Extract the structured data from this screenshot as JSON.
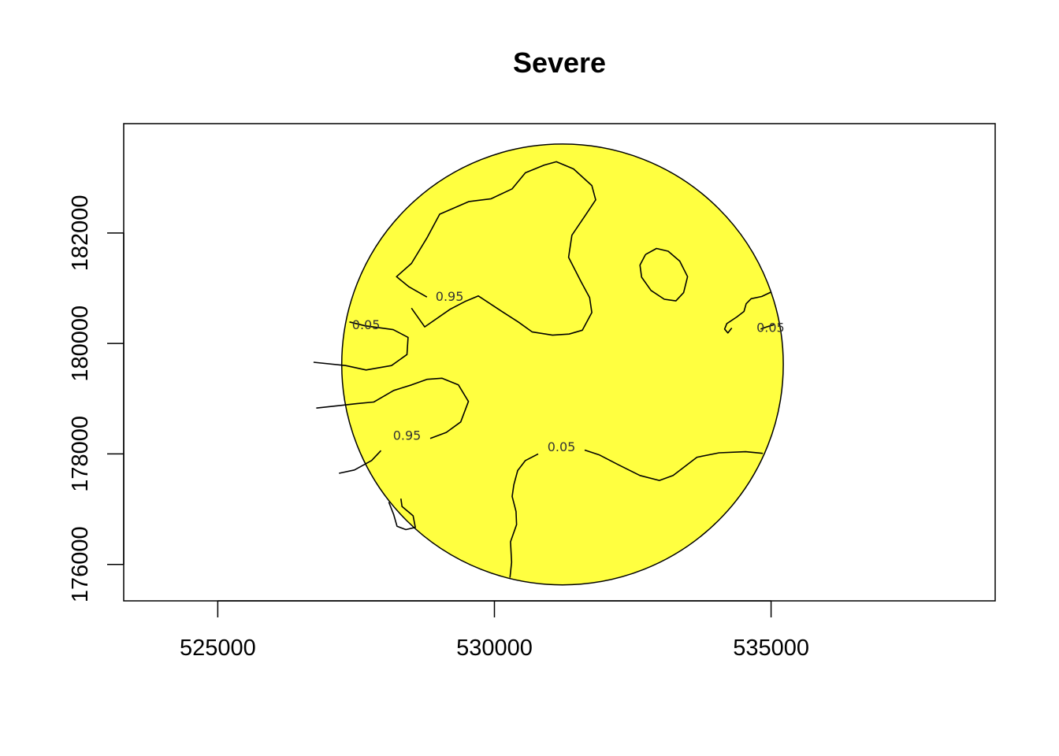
{
  "chart_data": {
    "type": "contour",
    "title": "Severe",
    "xlabel": "",
    "ylabel": "",
    "xlim": [
      523300,
      539050
    ],
    "ylim": [
      175340,
      183980
    ],
    "x_ticks": [
      525000,
      530000,
      535000
    ],
    "y_ticks": [
      176000,
      178000,
      180000,
      182000
    ],
    "x_tick_labels": [
      "525000",
      "530000",
      "535000"
    ],
    "y_tick_labels": [
      "176000",
      "178000",
      "180000",
      "182000"
    ],
    "region": {
      "shape": "circle",
      "center": [
        531230,
        179620
      ],
      "radius": 3990,
      "fill_color": "#ffff40"
    },
    "contour_levels": [
      "0.05",
      "0.95"
    ],
    "contour_labels": [
      {
        "text": "0.95",
        "x": 529190,
        "y": 180840
      },
      {
        "text": "0.05",
        "x": 527680,
        "y": 180330
      },
      {
        "text": "0.05",
        "x": 534990,
        "y": 180280
      },
      {
        "text": "0.95",
        "x": 528420,
        "y": 178330
      },
      {
        "text": "0.05",
        "x": 531210,
        "y": 178120
      }
    ],
    "contours": [
      {
        "level": "0.95",
        "points": [
          [
            528500,
            180640
          ],
          [
            528740,
            180300
          ],
          [
            529200,
            180620
          ],
          [
            529470,
            180760
          ],
          [
            529710,
            180860
          ],
          [
            530120,
            180590
          ],
          [
            530430,
            180390
          ],
          [
            530680,
            180210
          ],
          [
            531050,
            180150
          ],
          [
            531350,
            180170
          ],
          [
            531590,
            180240
          ],
          [
            531760,
            180560
          ],
          [
            531720,
            180830
          ],
          [
            531570,
            181110
          ],
          [
            531340,
            181560
          ],
          [
            531400,
            181960
          ],
          [
            531650,
            182330
          ],
          [
            531830,
            182600
          ],
          [
            531760,
            182860
          ],
          [
            531430,
            183160
          ],
          [
            531120,
            183290
          ],
          [
            530900,
            183230
          ],
          [
            530560,
            183090
          ],
          [
            530320,
            182800
          ],
          [
            529940,
            182620
          ],
          [
            529540,
            182570
          ],
          [
            529010,
            182340
          ],
          [
            528780,
            181910
          ],
          [
            528500,
            181450
          ],
          [
            528230,
            181210
          ],
          [
            528450,
            181030
          ],
          [
            528780,
            180840
          ]
        ]
      },
      {
        "level": "0.05",
        "points": [
          [
            527380,
            180390
          ],
          [
            527660,
            180320
          ],
          [
            528170,
            180250
          ],
          [
            528440,
            180110
          ],
          [
            528420,
            179800
          ],
          [
            528140,
            179600
          ],
          [
            527680,
            179520
          ],
          [
            527310,
            179600
          ],
          [
            526730,
            179660
          ]
        ]
      },
      {
        "level": "0.95",
        "points": [
          [
            526780,
            178830
          ],
          [
            527240,
            178880
          ],
          [
            527510,
            178910
          ],
          [
            527820,
            178940
          ],
          [
            528180,
            179150
          ],
          [
            528500,
            179250
          ],
          [
            528780,
            179350
          ],
          [
            529050,
            179370
          ],
          [
            529350,
            179250
          ],
          [
            529530,
            178950
          ],
          [
            529390,
            178580
          ],
          [
            529130,
            178390
          ],
          [
            528840,
            178280
          ]
        ]
      },
      {
        "level": "0.95",
        "points": [
          [
            527950,
            178060
          ],
          [
            527780,
            177880
          ],
          [
            527470,
            177710
          ],
          [
            527190,
            177650
          ]
        ]
      },
      {
        "level": "0.05",
        "points": [
          [
            530790,
            178000
          ],
          [
            530560,
            177880
          ],
          [
            530420,
            177700
          ],
          [
            530350,
            177440
          ],
          [
            530320,
            177230
          ],
          [
            530390,
            176960
          ],
          [
            530400,
            176720
          ],
          [
            530290,
            176410
          ],
          [
            530310,
            176040
          ],
          [
            530280,
            175760
          ]
        ]
      },
      {
        "level": "0.05",
        "points": [
          [
            531630,
            178070
          ],
          [
            531900,
            177980
          ],
          [
            532230,
            177810
          ],
          [
            532630,
            177610
          ],
          [
            532980,
            177520
          ],
          [
            533230,
            177610
          ],
          [
            533660,
            177940
          ],
          [
            534060,
            178020
          ],
          [
            534540,
            178040
          ],
          [
            534850,
            178010
          ]
        ]
      },
      {
        "level": "0.05",
        "points": [
          [
            532730,
            181610
          ],
          [
            532930,
            181720
          ],
          [
            533140,
            181670
          ],
          [
            533350,
            181490
          ],
          [
            533490,
            181210
          ],
          [
            533420,
            180920
          ],
          [
            533280,
            180770
          ],
          [
            533070,
            180800
          ],
          [
            532830,
            180960
          ],
          [
            532660,
            181200
          ],
          [
            532630,
            181420
          ],
          [
            532730,
            181610
          ]
        ]
      },
      {
        "level": "0.05",
        "points": [
          [
            535000,
            180930
          ],
          [
            534830,
            180850
          ],
          [
            534640,
            180810
          ],
          [
            534550,
            180720
          ],
          [
            534510,
            180580
          ],
          [
            534380,
            180480
          ],
          [
            534200,
            180360
          ],
          [
            534160,
            180260
          ],
          [
            534220,
            180190
          ],
          [
            534290,
            180280
          ]
        ]
      },
      {
        "level": "0.05",
        "points": [
          [
            534810,
            180260
          ],
          [
            534920,
            180300
          ],
          [
            535050,
            180340
          ]
        ]
      },
      {
        "level": "0.05",
        "points": [
          [
            528090,
            177130
          ],
          [
            528180,
            176900
          ],
          [
            528240,
            176690
          ],
          [
            528400,
            176630
          ],
          [
            528570,
            176670
          ],
          [
            528530,
            176880
          ],
          [
            528330,
            177050
          ],
          [
            528310,
            177190
          ]
        ]
      }
    ]
  }
}
